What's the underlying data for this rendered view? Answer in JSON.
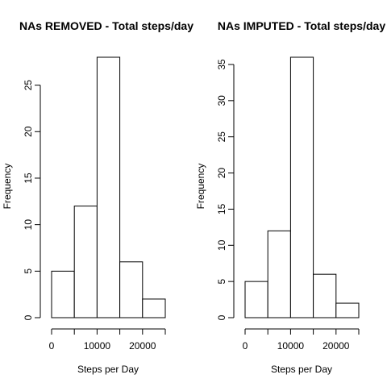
{
  "chart_data": [
    {
      "type": "bar",
      "title": "NAs REMOVED - Total steps/day",
      "xlabel": "Steps per Day",
      "ylabel": "Frequency",
      "bins": [
        [
          0,
          5000
        ],
        [
          5000,
          10000
        ],
        [
          10000,
          15000
        ],
        [
          15000,
          20000
        ],
        [
          20000,
          25000
        ]
      ],
      "values": [
        5,
        12,
        28,
        6,
        2
      ],
      "xticks": [
        0,
        10000,
        20000
      ],
      "xtick_labels": [
        "0",
        "10000",
        "20000"
      ],
      "xlim": [
        0,
        25000
      ],
      "yticks": [
        0,
        5,
        10,
        15,
        20,
        25
      ],
      "yticks_labels": [
        "0",
        "5",
        "10",
        "15",
        "20",
        "25"
      ],
      "ylim": [
        0,
        28
      ]
    },
    {
      "type": "bar",
      "title": "NAs IMPUTED - Total steps/day",
      "xlabel": "Steps per Day",
      "ylabel": "Frequency",
      "bins": [
        [
          0,
          5000
        ],
        [
          5000,
          10000
        ],
        [
          10000,
          15000
        ],
        [
          15000,
          20000
        ],
        [
          20000,
          25000
        ]
      ],
      "values": [
        5,
        12,
        36,
        6,
        2
      ],
      "xticks": [
        0,
        10000,
        20000
      ],
      "xtick_labels": [
        "0",
        "10000",
        "20000"
      ],
      "xlim": [
        0,
        25000
      ],
      "yticks": [
        0,
        5,
        10,
        15,
        20,
        25,
        30,
        35
      ],
      "yticks_labels": [
        "0",
        "5",
        "10",
        "15",
        "20",
        "25",
        "30",
        "35"
      ],
      "ylim": [
        0,
        36
      ]
    }
  ]
}
